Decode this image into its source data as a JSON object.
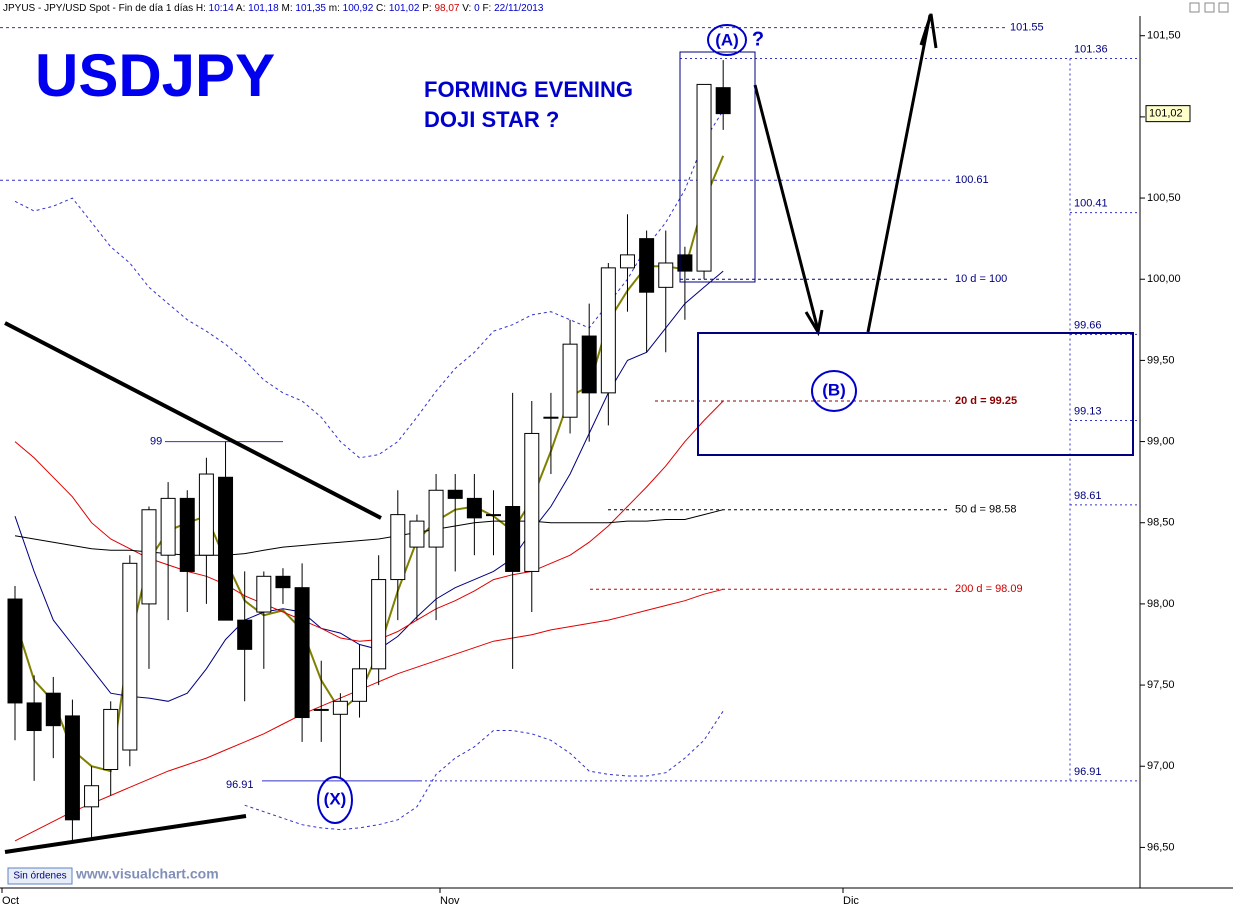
{
  "chart_data": {
    "type": "candlestick",
    "header": {
      "title": "JPYUS - JPY/USD Spot - Fin de día 1 días",
      "fields": [
        {
          "label": "H:",
          "value": "10:14"
        },
        {
          "label": "A:",
          "value": "101,18"
        },
        {
          "label": "M:",
          "value": "101,35"
        },
        {
          "label": "m:",
          "value": "100,92"
        },
        {
          "label": "C:",
          "value": "101,02"
        },
        {
          "label": "P:",
          "value": "98,07"
        },
        {
          "label": "V:",
          "value": "0"
        },
        {
          "label": "F:",
          "value": "22/11/2013"
        }
      ]
    },
    "title": "USDJPY",
    "annotations": {
      "note": [
        "FORMING EVENING",
        "DOJI STAR ?"
      ],
      "wave_a": "(A)",
      "question": "?",
      "wave_b": "(B)",
      "wave_x": "(X)"
    },
    "footer": {
      "orders": "Sin órdenes",
      "site": "www.visualchart.com"
    },
    "x_labels": [
      "Oct",
      "Nov",
      "Dic"
    ],
    "ylim": [
      96.25,
      101.72
    ],
    "yticks": [
      {
        "value": 96.5,
        "label": "96,50"
      },
      {
        "value": 97,
        "label": "97,00"
      },
      {
        "value": 97.5,
        "label": "97,50"
      },
      {
        "value": 98,
        "label": "98,00"
      },
      {
        "value": 98.5,
        "label": "98,50"
      },
      {
        "value": 99,
        "label": "99,00"
      },
      {
        "value": 99.5,
        "label": "99,50"
      },
      {
        "value": 100,
        "label": "100,00"
      },
      {
        "value": 100.5,
        "label": "100,50"
      },
      {
        "value": 101,
        "label": "101,00"
      },
      {
        "value": 101.5,
        "label": "101,50"
      }
    ],
    "last_price": {
      "value": 101.02,
      "label": "101,02"
    },
    "candles": {
      "open": [
        98.03,
        97.39,
        97.45,
        97.31,
        96.75,
        96.98,
        97.1,
        98.0,
        98.3,
        98.65,
        98.3,
        98.78,
        97.9,
        97.95,
        98.17,
        98.1,
        97.35,
        97.32,
        97.4,
        97.6,
        98.15,
        98.35,
        98.35,
        98.7,
        98.65,
        98.55,
        98.6,
        98.2,
        99.15,
        99.15,
        99.65,
        99.3,
        100.07,
        100.25,
        99.95,
        100.15,
        100.05,
        101.18
      ],
      "high": [
        98.11,
        97.56,
        97.55,
        97.41,
        97.0,
        97.4,
        98.3,
        98.6,
        98.75,
        98.7,
        98.9,
        99.0,
        98.2,
        98.2,
        98.22,
        98.25,
        97.65,
        97.45,
        97.75,
        98.3,
        98.7,
        98.55,
        98.8,
        98.8,
        98.8,
        98.7,
        99.3,
        99.25,
        99.3,
        99.75,
        99.85,
        100.1,
        100.4,
        100.3,
        100.3,
        100.2,
        101.2,
        101.35
      ],
      "low": [
        97.16,
        96.91,
        97.05,
        96.54,
        96.55,
        96.82,
        97.0,
        97.6,
        97.9,
        97.95,
        98.0,
        97.9,
        97.4,
        97.6,
        98.0,
        97.15,
        97.15,
        96.92,
        97.3,
        97.5,
        97.9,
        97.9,
        97.9,
        98.2,
        98.3,
        98.3,
        97.6,
        97.95,
        98.8,
        99.05,
        99.0,
        99.1,
        99.8,
        99.55,
        99.55,
        99.75,
        100.0,
        100.92
      ],
      "close": [
        97.39,
        97.22,
        97.25,
        96.67,
        96.88,
        97.35,
        98.25,
        98.58,
        98.65,
        98.2,
        98.8,
        97.9,
        97.72,
        98.17,
        98.1,
        97.3,
        97.35,
        97.4,
        97.6,
        98.15,
        98.55,
        98.51,
        98.7,
        98.65,
        98.53,
        98.55,
        98.2,
        99.05,
        99.15,
        99.6,
        99.3,
        100.07,
        100.15,
        99.92,
        100.1,
        100.05,
        101.2,
        101.02
      ]
    },
    "lines": [
      {
        "color": "#808000",
        "dash": false,
        "width": 2,
        "values": [
          97.9,
          97.53,
          97.4,
          97.1,
          97.0,
          96.97,
          97.77,
          98.27,
          98.45,
          98.5,
          98.54,
          98.27,
          98.02,
          97.93,
          97.96,
          97.84,
          97.53,
          97.34,
          97.44,
          97.71,
          98.08,
          98.39,
          98.51,
          98.58,
          98.6,
          98.54,
          98.45,
          98.64,
          98.94,
          99.28,
          99.34,
          99.74,
          99.93,
          100.08,
          100.08,
          100.06,
          100.48,
          100.76
        ]
      },
      {
        "color": "#000080",
        "dash": false,
        "width": 1,
        "values": [
          98.54,
          98.2,
          97.9,
          97.75,
          97.6,
          97.45,
          97.43,
          97.42,
          97.4,
          97.45,
          97.6,
          97.78,
          97.9,
          97.95,
          97.97,
          97.95,
          97.85,
          97.82,
          97.75,
          97.72,
          97.8,
          97.92,
          98.03,
          98.1,
          98.15,
          98.2,
          98.28,
          98.45,
          98.6,
          98.8,
          99.05,
          99.3,
          99.5,
          99.55,
          99.7,
          99.85,
          99.95,
          100.05
        ]
      },
      {
        "color": "#e00000",
        "dash": false,
        "width": 1,
        "values": [
          99.0,
          98.9,
          98.78,
          98.66,
          98.5,
          98.4,
          98.34,
          98.28,
          98.24,
          98.2,
          98.17,
          98.12,
          98.05,
          98.0,
          97.95,
          97.9,
          97.85,
          97.79,
          97.77,
          97.78,
          97.83,
          97.9,
          97.97,
          98.02,
          98.08,
          98.15,
          98.18,
          98.2,
          98.25,
          98.3,
          98.38,
          98.48,
          98.6,
          98.72,
          98.85,
          99.0,
          99.13,
          99.25
        ]
      },
      {
        "color": "#000000",
        "dash": false,
        "width": 1,
        "values": [
          98.42,
          98.4,
          98.38,
          98.36,
          98.34,
          98.33,
          98.33,
          98.32,
          98.31,
          98.3,
          98.3,
          98.3,
          98.31,
          98.33,
          98.35,
          98.36,
          98.37,
          98.38,
          98.39,
          98.4,
          98.42,
          98.44,
          98.46,
          98.48,
          98.5,
          98.51,
          98.51,
          98.51,
          98.5,
          98.5,
          98.5,
          98.5,
          98.51,
          98.51,
          98.52,
          98.52,
          98.55,
          98.58
        ]
      },
      {
        "color": "#e00000",
        "dash": false,
        "width": 1,
        "values": [
          96.54,
          96.6,
          96.66,
          96.72,
          96.77,
          96.82,
          96.87,
          96.92,
          96.97,
          97.01,
          97.05,
          97.1,
          97.15,
          97.2,
          97.26,
          97.32,
          97.37,
          97.42,
          97.47,
          97.52,
          97.57,
          97.61,
          97.65,
          97.69,
          97.73,
          97.77,
          97.79,
          97.81,
          97.84,
          97.86,
          97.88,
          97.9,
          97.93,
          97.96,
          97.99,
          98.02,
          98.06,
          98.09
        ]
      },
      {
        "color": "#3333cc",
        "dash": true,
        "width": 1,
        "values": [
          100.48,
          100.42,
          100.45,
          100.5,
          100.35,
          100.2,
          100.1,
          99.95,
          99.85,
          99.75,
          99.68,
          99.6,
          99.5,
          99.38,
          99.3,
          99.25,
          99.15,
          99.0,
          98.9,
          98.92,
          99.0,
          99.15,
          99.31,
          99.45,
          99.55,
          99.68,
          99.72,
          99.78,
          99.8,
          99.75,
          99.7,
          99.85,
          100.0,
          100.2,
          100.35,
          100.55,
          100.85,
          101.04
        ]
      },
      {
        "color": "#3333cc",
        "dash": true,
        "width": 1,
        "values": [
          null,
          null,
          null,
          null,
          null,
          null,
          null,
          null,
          null,
          null,
          null,
          null,
          96.76,
          96.72,
          96.68,
          96.64,
          96.62,
          96.61,
          96.62,
          96.64,
          96.67,
          96.75,
          96.95,
          97.05,
          97.12,
          97.22,
          97.22,
          97.2,
          97.16,
          97.08,
          96.97,
          96.95,
          96.94,
          96.94,
          96.96,
          97.05,
          97.16,
          97.34
        ]
      }
    ],
    "dashed_levels": [
      101.55,
      100.61
    ],
    "ma_levels": [
      {
        "value": 100,
        "label": "10 d = 100",
        "color": "#000080"
      },
      {
        "value": 99.25,
        "label": "20 d = 99.25",
        "color": "#8b0000"
      },
      {
        "value": 98.58,
        "label": "50 d = 98.58",
        "color": "#000000"
      },
      {
        "value": 98.09,
        "label": "200 d = 98.09",
        "color": "#cc0000"
      }
    ],
    "fib_levels": [
      101.36,
      100.41,
      99.66,
      99.13,
      98.61,
      96.91
    ],
    "swing_levels": [
      99,
      96.91
    ]
  }
}
